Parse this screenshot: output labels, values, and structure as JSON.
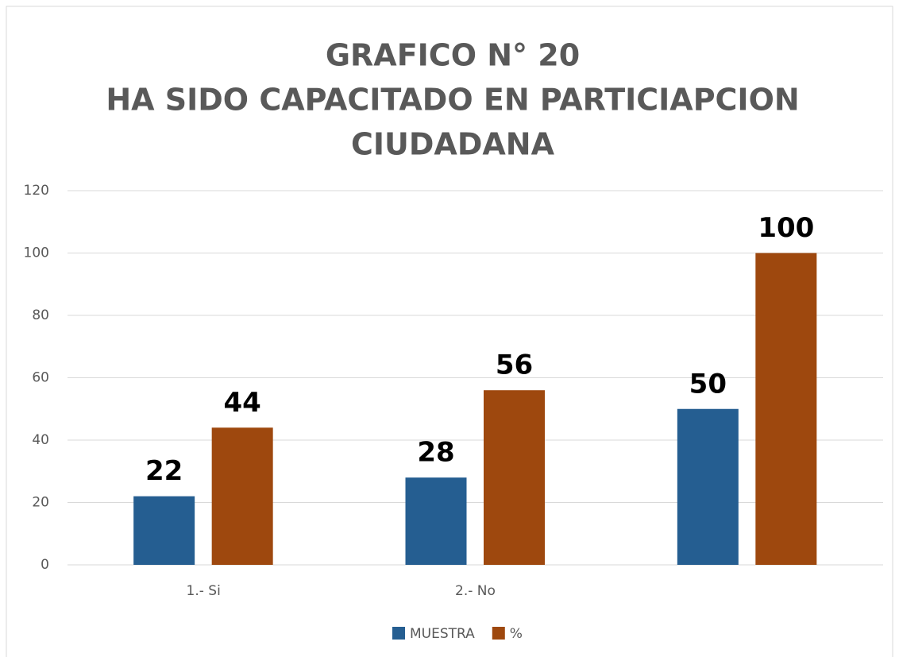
{
  "chart_data": {
    "type": "bar",
    "title": [
      "GRAFICO N° 20",
      "HA SIDO CAPACITADO EN PARTICIAPCION",
      "CIUDADANA"
    ],
    "categories": [
      "1.- Si",
      "2.- No",
      null
    ],
    "series": [
      {
        "name": "MUESTRA",
        "color": "#255e91",
        "values": [
          22,
          28,
          50
        ]
      },
      {
        "name": "%",
        "color": "#9e480e",
        "values": [
          44,
          56,
          100
        ]
      }
    ],
    "ylim": [
      0,
      120
    ],
    "yticks": [
      0,
      20,
      40,
      60,
      80,
      100,
      120
    ],
    "grid": true,
    "data_labels": true,
    "legend": "bottom"
  }
}
